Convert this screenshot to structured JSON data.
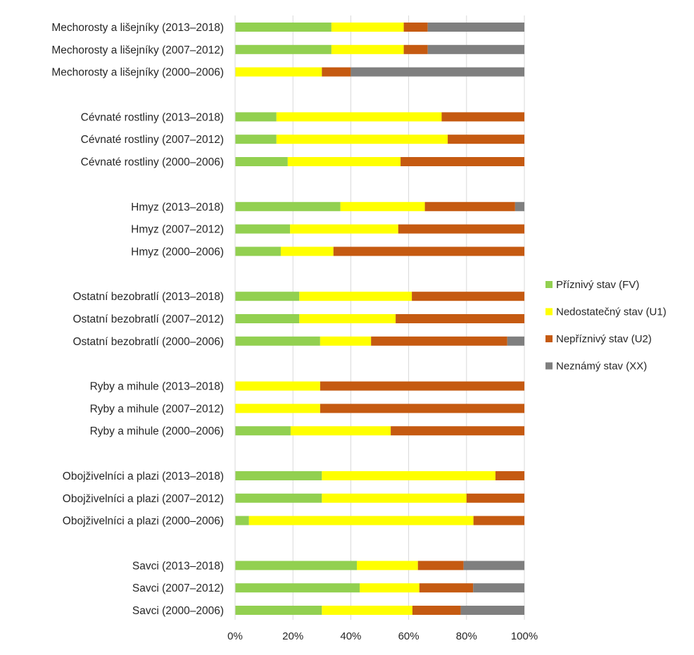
{
  "chart_data": {
    "type": "bar",
    "orientation": "horizontal",
    "stacked": "percent",
    "categories": [
      "Mechorosty a lišejníky (2013–2018)",
      "Mechorosty a lišejníky (2007–2012)",
      "Mechorosty a lišejníky (2000–2006)",
      "Cévnaté rostliny (2013–2018)",
      "Cévnaté rostliny (2007–2012)",
      "Cévnaté rostliny (2000–2006)",
      "Hmyz (2013–2018)",
      "Hmyz (2007–2012)",
      "Hmyz (2000–2006)",
      "Ostatní bezobratlí (2013–2018)",
      "Ostatní bezobratlí (2007–2012)",
      "Ostatní bezobratlí (2000–2006)",
      "Ryby a mihule (2013–2018)",
      "Ryby a mihule (2007–2012)",
      "Ryby a mihule (2000–2006)",
      "Obojživelníci a plazi (2013–2018)",
      "Obojživelníci a plazi (2007–2012)",
      "Obojživelníci a plazi (2000–2006)",
      "Savci (2013–2018)",
      "Savci (2007–2012)",
      "Savci (2000–2006)"
    ],
    "groups": [
      {
        "items": [
          0,
          1,
          2
        ]
      },
      {
        "items": [
          3,
          4,
          5
        ]
      },
      {
        "items": [
          6,
          7,
          8
        ]
      },
      {
        "items": [
          9,
          10,
          11
        ]
      },
      {
        "items": [
          12,
          13,
          14
        ]
      },
      {
        "items": [
          15,
          16,
          17
        ]
      },
      {
        "items": [
          18,
          19,
          20
        ]
      }
    ],
    "series": [
      {
        "name": "Příznivý stav (FV)",
        "color": "#92d050",
        "values": [
          33.3,
          33.3,
          0,
          14.3,
          14.3,
          18.2,
          36.4,
          19.0,
          15.8,
          22.2,
          22.2,
          29.4,
          0,
          0,
          19.2,
          30.0,
          30.0,
          4.8,
          42.1,
          43.1,
          30.0
        ]
      },
      {
        "name": "Nedostatečný stav (U1)",
        "color": "#ffff00",
        "values": [
          25.0,
          25.0,
          30.0,
          57.1,
          59.2,
          39.0,
          29.2,
          37.4,
          18.2,
          38.9,
          33.3,
          17.6,
          29.4,
          29.4,
          34.6,
          60.0,
          50.0,
          77.6,
          21.1,
          20.6,
          31.3
        ]
      },
      {
        "name": "Nepříznivý stav (U2)",
        "color": "#c55a11",
        "values": [
          8.3,
          8.3,
          10.0,
          28.6,
          26.5,
          42.8,
          31.2,
          43.6,
          66.0,
          38.9,
          44.5,
          47.1,
          70.6,
          70.6,
          46.2,
          10.0,
          20.0,
          17.6,
          15.8,
          18.6,
          16.7
        ]
      },
      {
        "name": "Neznámý stav (XX)",
        "color": "#7f7f7f",
        "values": [
          33.4,
          33.4,
          60.0,
          0,
          0,
          0,
          3.2,
          0,
          0,
          0,
          0,
          5.9,
          0,
          0,
          0,
          0,
          0,
          0,
          21.0,
          17.7,
          22.0
        ]
      }
    ],
    "xlim": [
      0,
      100
    ],
    "x_ticks": [
      "0%",
      "20%",
      "40%",
      "60%",
      "80%",
      "100%"
    ],
    "grid": "vertical",
    "legend_position": "right",
    "title": "",
    "xlabel": "",
    "ylabel": ""
  }
}
